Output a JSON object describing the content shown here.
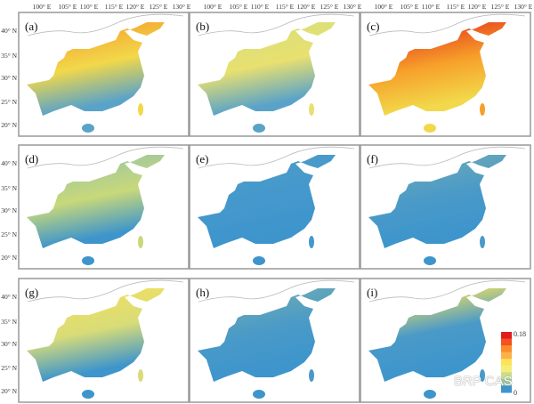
{
  "lon_ticks": [
    "100° E",
    "105° E",
    "110° E",
    "115° E",
    "120° E",
    "125° E",
    "130° E"
  ],
  "lat_ticks": [
    "40° N",
    "35° N",
    "30° N",
    "25° N",
    "20° N"
  ],
  "panels": [
    {
      "label": "(a)",
      "colors": [
        "#f4a430",
        "#f2d84a",
        "#5aa3c8"
      ]
    },
    {
      "label": "(b)",
      "colors": [
        "#d8e07a",
        "#e8e070",
        "#5aa3c8"
      ]
    },
    {
      "label": "(c)",
      "colors": [
        "#e8401e",
        "#f6a02a",
        "#f2d84a"
      ]
    },
    {
      "label": "(d)",
      "colors": [
        "#9cc7a0",
        "#c8d87a",
        "#3d95cc"
      ]
    },
    {
      "label": "(e)",
      "colors": [
        "#4a9cc8",
        "#4598cc",
        "#3d95cc"
      ]
    },
    {
      "label": "(f)",
      "colors": [
        "#6aa8b8",
        "#4a9ac8",
        "#3d95cc"
      ]
    },
    {
      "label": "(g)",
      "colors": [
        "#f0e060",
        "#d8dc78",
        "#3d95cc"
      ]
    },
    {
      "label": "(h)",
      "colors": [
        "#6aaab4",
        "#4a9ac8",
        "#3d95cc"
      ]
    },
    {
      "label": "(i)",
      "colors": [
        "#f0e060",
        "#4a9ac8",
        "#3d95cc"
      ]
    }
  ],
  "legend": {
    "max": "0.18",
    "min": "0",
    "colors": [
      "#e31a1c",
      "#f4511e",
      "#fb8c2c",
      "#fdb04a",
      "#fde35a",
      "#f3ee7a",
      "#c9dc8a",
      "#9cc7a0",
      "#3d95cc"
    ]
  },
  "watermark": "BRP CAS"
}
